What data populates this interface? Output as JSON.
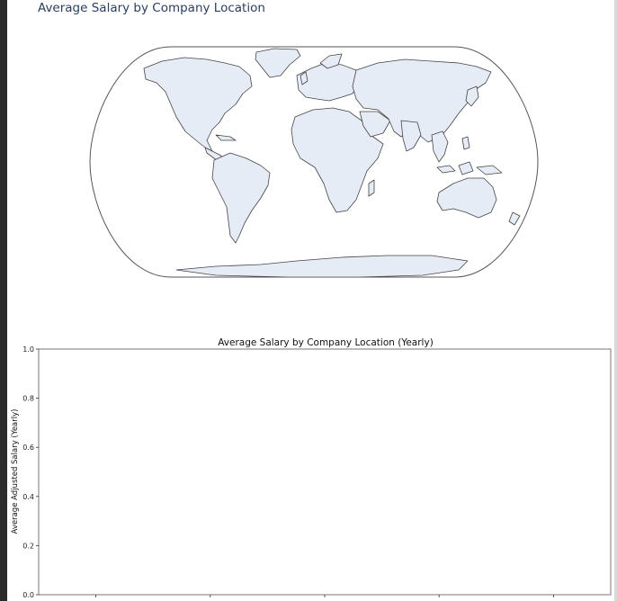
{
  "chart_data": [
    {
      "type": "map",
      "title": "Average Salary by Company Location",
      "projection": "natural earth",
      "land_color": "#e5ecf6",
      "coastline_color": "#444444",
      "locations": [],
      "values": []
    },
    {
      "type": "bar",
      "title": "Average Salary by Company Location (Yearly)",
      "xlabel": "",
      "ylabel": "Average Adjusted Salary (Yearly)",
      "categories": [],
      "values": [],
      "ylim": [
        0,
        1.0
      ],
      "yticks": [
        "0.0",
        "0.2",
        "0.4",
        "0.6",
        "0.8",
        "1.0"
      ],
      "xticks_count": 5,
      "grid": false
    }
  ]
}
